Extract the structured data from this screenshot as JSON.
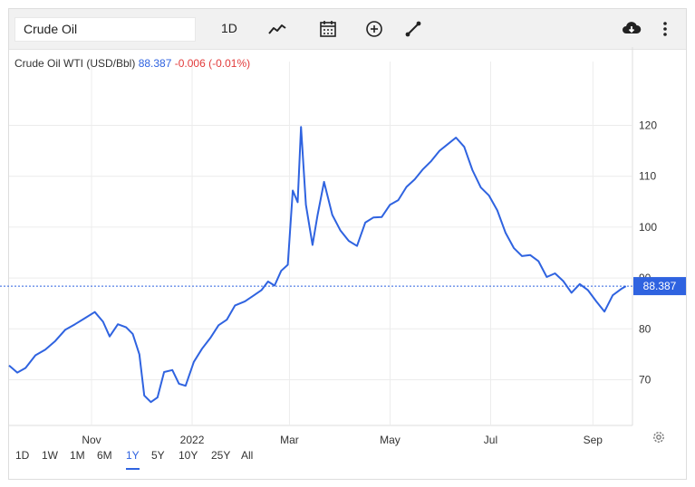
{
  "toolbar": {
    "symbol": "Crude Oil",
    "interval": "1D",
    "icons": [
      "line-chart-icon",
      "calendar-icon",
      "add-circle-icon",
      "draw-line-icon",
      "download-cloud-icon",
      "more-vertical-icon"
    ]
  },
  "legend": {
    "name": "Crude Oil WTI (USD/Bbl)",
    "price": "88.387",
    "change": "-0.006 (-0.01%)"
  },
  "ranges": [
    "1D",
    "1W",
    "1M",
    "6M",
    "1Y",
    "5Y",
    "10Y",
    "25Y",
    "All"
  ],
  "active_range": "1Y",
  "colors": {
    "line": "#2f63e0",
    "price_label_bg": "#2f63e0",
    "negative": "#e23b3b",
    "grid": "#ececec"
  },
  "chart_data": {
    "type": "line",
    "y_ticks": [
      70,
      80,
      90,
      100,
      110,
      120
    ],
    "x_ticks": [
      {
        "label": "Nov",
        "date": "2021-11-01"
      },
      {
        "label": "2022",
        "date": "2022-01-01"
      },
      {
        "label": "Mar",
        "date": "2022-03-01"
      },
      {
        "label": "May",
        "date": "2022-05-01"
      },
      {
        "label": "Jul",
        "date": "2022-07-01"
      },
      {
        "label": "Sep",
        "date": "2022-09-01"
      }
    ],
    "ylim": [
      61,
      129
    ],
    "xlim": [
      "2021-09-12",
      "2022-09-25"
    ],
    "last_value_label": "88.387",
    "grid": true,
    "series": [
      {
        "points": [
          [
            "2021-09-12",
            72.8
          ],
          [
            "2021-09-17",
            71.4
          ],
          [
            "2021-09-22",
            72.3
          ],
          [
            "2021-09-28",
            74.8
          ],
          [
            "2021-10-04",
            75.9
          ],
          [
            "2021-10-10",
            77.6
          ],
          [
            "2021-10-16",
            79.8
          ],
          [
            "2021-10-22",
            80.9
          ],
          [
            "2021-10-28",
            82.1
          ],
          [
            "2021-11-03",
            83.3
          ],
          [
            "2021-11-08",
            81.4
          ],
          [
            "2021-11-12",
            78.5
          ],
          [
            "2021-11-17",
            80.9
          ],
          [
            "2021-11-22",
            80.3
          ],
          [
            "2021-11-26",
            79.0
          ],
          [
            "2021-11-30",
            75.0
          ],
          [
            "2021-12-03",
            66.9
          ],
          [
            "2021-12-07",
            65.6
          ],
          [
            "2021-12-11",
            66.5
          ],
          [
            "2021-12-15",
            71.5
          ],
          [
            "2021-12-20",
            71.9
          ],
          [
            "2021-12-24",
            69.2
          ],
          [
            "2021-12-28",
            68.8
          ],
          [
            "2022-01-02",
            73.5
          ],
          [
            "2022-01-07",
            76.1
          ],
          [
            "2022-01-12",
            78.2
          ],
          [
            "2022-01-17",
            80.7
          ],
          [
            "2022-01-22",
            81.8
          ],
          [
            "2022-01-27",
            84.6
          ],
          [
            "2022-02-02",
            85.4
          ],
          [
            "2022-02-07",
            86.5
          ],
          [
            "2022-02-12",
            87.6
          ],
          [
            "2022-02-16",
            89.3
          ],
          [
            "2022-02-20",
            88.5
          ],
          [
            "2022-02-24",
            91.4
          ],
          [
            "2022-02-28",
            92.6
          ],
          [
            "2022-03-03",
            107.2
          ],
          [
            "2022-03-06",
            104.9
          ],
          [
            "2022-03-08",
            119.7
          ],
          [
            "2022-03-11",
            104.4
          ],
          [
            "2022-03-15",
            96.5
          ],
          [
            "2022-03-18",
            102.3
          ],
          [
            "2022-03-22",
            108.9
          ],
          [
            "2022-03-27",
            102.4
          ],
          [
            "2022-04-01",
            99.3
          ],
          [
            "2022-04-06",
            97.3
          ],
          [
            "2022-04-11",
            96.3
          ],
          [
            "2022-04-16",
            100.9
          ],
          [
            "2022-04-21",
            101.9
          ],
          [
            "2022-04-26",
            102.0
          ],
          [
            "2022-05-01",
            104.4
          ],
          [
            "2022-05-06",
            105.3
          ],
          [
            "2022-05-11",
            107.9
          ],
          [
            "2022-05-16",
            109.4
          ],
          [
            "2022-05-21",
            111.4
          ],
          [
            "2022-05-26",
            113.0
          ],
          [
            "2022-05-31",
            115.0
          ],
          [
            "2022-06-05",
            116.3
          ],
          [
            "2022-06-10",
            117.6
          ],
          [
            "2022-06-15",
            115.8
          ],
          [
            "2022-06-20",
            111.2
          ],
          [
            "2022-06-25",
            107.8
          ],
          [
            "2022-06-30",
            106.2
          ],
          [
            "2022-07-05",
            103.3
          ],
          [
            "2022-07-10",
            98.9
          ],
          [
            "2022-07-15",
            95.9
          ],
          [
            "2022-07-20",
            94.3
          ],
          [
            "2022-07-25",
            94.5
          ],
          [
            "2022-07-30",
            93.3
          ],
          [
            "2022-08-04",
            90.2
          ],
          [
            "2022-08-09",
            90.9
          ],
          [
            "2022-08-14",
            89.4
          ],
          [
            "2022-08-19",
            87.1
          ],
          [
            "2022-08-24",
            88.8
          ],
          [
            "2022-08-29",
            87.6
          ],
          [
            "2022-09-03",
            85.4
          ],
          [
            "2022-09-08",
            83.4
          ],
          [
            "2022-09-13",
            86.6
          ],
          [
            "2022-09-18",
            87.8
          ],
          [
            "2022-09-21",
            88.4
          ]
        ]
      }
    ]
  }
}
